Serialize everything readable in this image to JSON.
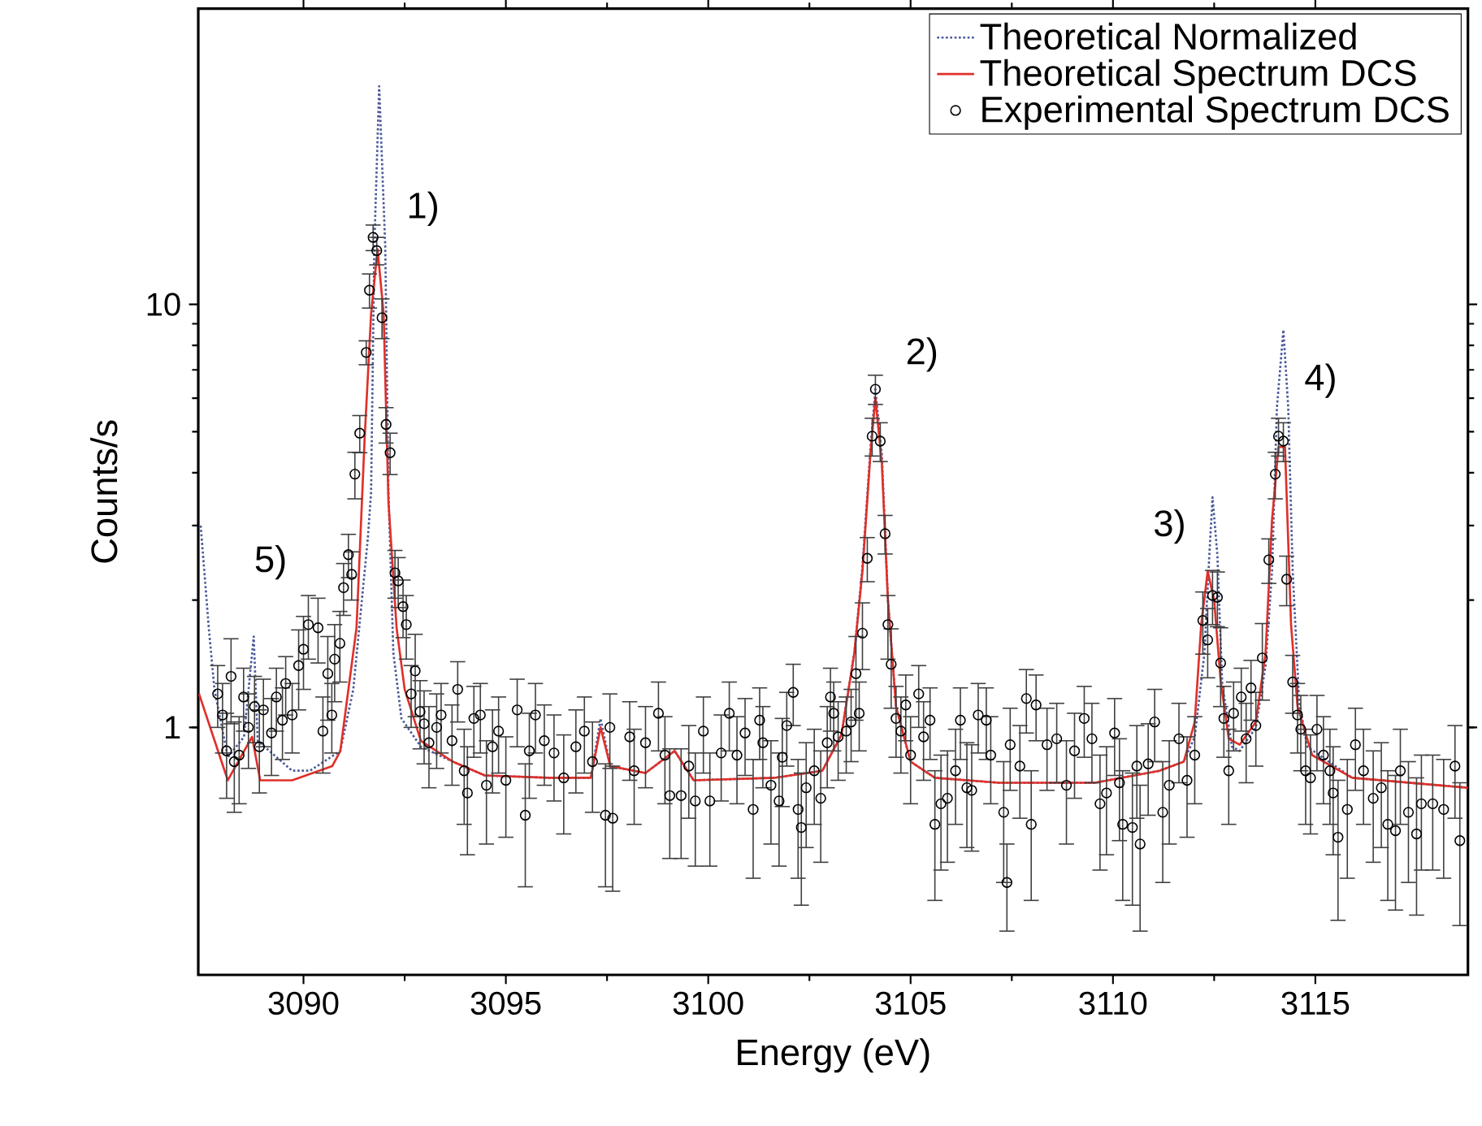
{
  "chart_data": {
    "type": "scatter",
    "xlabel": "Energy (eV)",
    "ylabel": "Counts/s",
    "log": "y",
    "xlim": [
      3087.4,
      3118.77
    ],
    "ylim": [
      0.26,
      50
    ],
    "xticks": [
      3090,
      3095,
      3100,
      3105,
      3110,
      3115
    ],
    "yticks": [
      1,
      10
    ],
    "grid": false,
    "legend": "top right",
    "annotations": [
      "1)",
      "2)",
      "3)",
      "4)",
      "5)"
    ],
    "series": [
      {
        "name": "Theoretical Normalized",
        "type": "line",
        "color": "#4a5a9a",
        "line_style": "dotted",
        "marker": "none",
        "x": [
          3087.46,
          3087.66,
          3087.8,
          3088.13,
          3088.53,
          3088.77,
          3088.87,
          3089.72,
          3090.16,
          3090.91,
          3091.23,
          3091.59,
          3091.67,
          3091.75,
          3091.87,
          3092.02,
          3092.1,
          3092.22,
          3092.42,
          3092.9,
          3093.69,
          3094.48,
          3096.07,
          3097.1,
          3097.34,
          3097.58,
          3098.45,
          3099.17,
          3099.64,
          3101.63,
          3102.82,
          3103.29,
          3103.61,
          3103.81,
          3104.01,
          3104.13,
          3104.29,
          3104.44,
          3104.64,
          3105.0,
          3105.6,
          3107.18,
          3109.56,
          3111.15,
          3111.75,
          3112.02,
          3112.26,
          3112.38,
          3112.46,
          3112.58,
          3112.7,
          3112.94,
          3113.13,
          3113.53,
          3113.77,
          3113.93,
          3114.05,
          3114.21,
          3114.33,
          3114.44,
          3114.6,
          3114.8,
          3115.91,
          3118.77
        ],
        "values": [
          3.0,
          1.72,
          1.23,
          0.85,
          0.95,
          1.64,
          0.93,
          0.79,
          0.79,
          0.88,
          1.23,
          2.8,
          3.6,
          13.7,
          32.8,
          13.7,
          3.6,
          1.5,
          1.05,
          0.9,
          0.83,
          0.77,
          0.76,
          0.76,
          1.05,
          0.81,
          0.78,
          0.88,
          0.75,
          0.76,
          0.79,
          0.96,
          1.5,
          2.4,
          4.6,
          6.3,
          4.4,
          2.0,
          1.12,
          0.83,
          0.76,
          0.74,
          0.74,
          0.79,
          0.83,
          0.95,
          1.5,
          2.55,
          3.5,
          2.55,
          1.26,
          0.9,
          0.88,
          1.0,
          1.4,
          2.34,
          5.7,
          8.7,
          5.7,
          2.34,
          1.15,
          0.9,
          0.76,
          0.72
        ]
      },
      {
        "name": "Theoretical Spectrum DCS",
        "type": "line",
        "color": "#e0302a",
        "line_style": "solid",
        "marker": "none",
        "x": [
          3087.42,
          3088.13,
          3088.73,
          3088.93,
          3089.72,
          3090.71,
          3090.91,
          3091.31,
          3091.51,
          3091.67,
          3091.83,
          3091.98,
          3092.1,
          3092.3,
          3092.5,
          3092.9,
          3093.69,
          3094.48,
          3096.07,
          3097.1,
          3097.34,
          3097.58,
          3098.45,
          3099.17,
          3099.64,
          3101.63,
          3102.82,
          3103.29,
          3103.61,
          3103.81,
          3104.01,
          3104.13,
          3104.29,
          3104.44,
          3104.64,
          3105.0,
          3105.6,
          3107.18,
          3109.56,
          3111.15,
          3111.75,
          3112.02,
          3112.18,
          3112.34,
          3112.5,
          3112.66,
          3112.86,
          3113.13,
          3113.53,
          3113.77,
          3113.93,
          3114.09,
          3114.25,
          3114.4,
          3114.56,
          3114.92,
          3115.91,
          3118.77
        ],
        "values": [
          1.2,
          0.75,
          0.95,
          0.75,
          0.75,
          0.81,
          0.88,
          1.72,
          4.8,
          9.5,
          13.5,
          9.5,
          3.4,
          1.72,
          1.23,
          0.93,
          0.83,
          0.77,
          0.76,
          0.76,
          1.0,
          0.81,
          0.78,
          0.88,
          0.75,
          0.76,
          0.79,
          0.96,
          1.5,
          2.34,
          4.46,
          6.0,
          4.2,
          2.0,
          1.12,
          0.83,
          0.76,
          0.74,
          0.74,
          0.79,
          0.83,
          1.03,
          1.75,
          2.34,
          2.0,
          1.29,
          0.94,
          0.91,
          1.03,
          1.5,
          3.1,
          4.6,
          4.6,
          1.75,
          1.12,
          0.86,
          0.76,
          0.72
        ]
      },
      {
        "name": "Experimental Spectrum DCS",
        "color": "#000000",
        "marker": "circle",
        "x": [
          3087.88,
          3088.0,
          3088.1,
          3088.21,
          3088.29,
          3088.41,
          3088.52,
          3088.64,
          3088.79,
          3088.91,
          3089.01,
          3089.21,
          3089.33,
          3089.48,
          3089.56,
          3089.72,
          3089.88,
          3090.0,
          3090.12,
          3090.36,
          3090.48,
          3090.6,
          3090.7,
          3090.77,
          3090.9,
          3090.99,
          3091.11,
          3091.19,
          3091.27,
          3091.39,
          3091.55,
          3091.63,
          3091.72,
          3091.81,
          3091.94,
          3092.04,
          3092.14,
          3092.26,
          3092.34,
          3092.46,
          3092.54,
          3092.66,
          3092.76,
          3092.88,
          3092.98,
          3093.1,
          3093.29,
          3093.4,
          3093.67,
          3093.81,
          3093.97,
          3094.05,
          3094.21,
          3094.37,
          3094.52,
          3094.67,
          3094.82,
          3095.0,
          3095.28,
          3095.48,
          3095.58,
          3095.73,
          3095.95,
          3096.19,
          3096.43,
          3096.73,
          3096.94,
          3097.14,
          3097.46,
          3097.57,
          3097.64,
          3098.06,
          3098.17,
          3098.45,
          3098.77,
          3098.93,
          3099.05,
          3099.33,
          3099.52,
          3099.68,
          3099.88,
          3100.04,
          3100.32,
          3100.52,
          3100.71,
          3100.91,
          3101.11,
          3101.27,
          3101.35,
          3101.55,
          3101.75,
          3101.83,
          3101.94,
          3102.1,
          3102.22,
          3102.3,
          3102.42,
          3102.62,
          3102.78,
          3102.94,
          3103.02,
          3103.1,
          3103.21,
          3103.41,
          3103.53,
          3103.65,
          3103.73,
          3103.81,
          3103.93,
          3104.05,
          3104.13,
          3104.25,
          3104.37,
          3104.44,
          3104.52,
          3104.64,
          3104.76,
          3104.88,
          3105.0,
          3105.2,
          3105.32,
          3105.48,
          3105.6,
          3105.75,
          3105.91,
          3106.11,
          3106.23,
          3106.39,
          3106.51,
          3106.67,
          3106.87,
          3106.98,
          3107.3,
          3107.38,
          3107.46,
          3107.7,
          3107.86,
          3107.98,
          3108.1,
          3108.37,
          3108.61,
          3108.85,
          3109.05,
          3109.29,
          3109.48,
          3109.68,
          3109.84,
          3110.04,
          3110.16,
          3110.24,
          3110.48,
          3110.59,
          3110.67,
          3110.87,
          3111.03,
          3111.23,
          3111.39,
          3111.63,
          3111.83,
          3112.02,
          3112.22,
          3112.34,
          3112.46,
          3112.58,
          3112.66,
          3112.74,
          3112.86,
          3112.98,
          3113.17,
          3113.29,
          3113.41,
          3113.53,
          3113.69,
          3113.85,
          3114.01,
          3114.09,
          3114.21,
          3114.29,
          3114.44,
          3114.56,
          3114.64,
          3114.76,
          3114.88,
          3115.04,
          3115.2,
          3115.36,
          3115.44,
          3115.56,
          3115.79,
          3115.99,
          3116.19,
          3116.43,
          3116.63,
          3116.79,
          3116.98,
          3117.1,
          3117.3,
          3117.5,
          3117.62,
          3117.9,
          3118.17,
          3118.45,
          3118.57
        ],
        "values": [
          1.2,
          1.07,
          0.88,
          1.32,
          0.83,
          0.86,
          1.18,
          1.0,
          1.12,
          0.9,
          1.1,
          0.97,
          1.18,
          1.04,
          1.27,
          1.07,
          1.4,
          1.53,
          1.75,
          1.72,
          0.98,
          1.34,
          1.07,
          1.45,
          1.58,
          2.14,
          2.56,
          2.3,
          3.97,
          4.96,
          7.7,
          10.8,
          14.4,
          13.4,
          9.3,
          5.2,
          4.46,
          2.32,
          2.22,
          1.93,
          1.75,
          1.2,
          1.36,
          1.09,
          1.02,
          0.92,
          1.0,
          1.07,
          0.93,
          1.23,
          0.79,
          0.7,
          1.05,
          1.07,
          0.73,
          0.9,
          0.98,
          0.75,
          1.1,
          0.62,
          0.88,
          1.07,
          0.93,
          0.87,
          0.76,
          0.9,
          0.98,
          0.83,
          0.62,
          1.0,
          0.61,
          0.95,
          0.79,
          0.92,
          1.08,
          0.86,
          0.69,
          0.69,
          0.81,
          0.67,
          0.98,
          0.67,
          0.87,
          1.08,
          0.86,
          0.97,
          0.64,
          1.04,
          0.92,
          0.73,
          0.67,
          0.85,
          1.01,
          1.21,
          0.64,
          0.58,
          0.72,
          0.79,
          0.68,
          0.92,
          1.18,
          1.08,
          0.95,
          0.98,
          1.03,
          1.34,
          1.08,
          1.67,
          2.51,
          4.88,
          6.3,
          4.75,
          2.87,
          1.75,
          1.41,
          1.05,
          0.98,
          1.13,
          0.86,
          1.2,
          0.95,
          1.04,
          0.59,
          0.66,
          0.68,
          0.79,
          1.04,
          0.72,
          0.71,
          1.07,
          1.04,
          0.86,
          0.63,
          0.43,
          0.91,
          0.81,
          1.17,
          0.59,
          1.13,
          0.91,
          0.94,
          0.73,
          0.88,
          1.05,
          0.94,
          0.66,
          0.7,
          0.97,
          0.74,
          0.59,
          0.58,
          0.81,
          0.53,
          0.82,
          1.03,
          0.63,
          0.73,
          0.94,
          0.75,
          0.86,
          1.79,
          1.61,
          2.05,
          2.03,
          1.42,
          1.05,
          0.79,
          1.08,
          1.18,
          0.94,
          1.24,
          1.01,
          1.46,
          2.49,
          3.97,
          4.88,
          4.75,
          2.24,
          1.28,
          1.07,
          0.99,
          0.79,
          0.76,
          0.99,
          0.86,
          0.79,
          0.7,
          0.55,
          0.64,
          0.91,
          0.79,
          0.68,
          0.72,
          0.59,
          0.57,
          0.79,
          0.63,
          0.56,
          0.66,
          0.66,
          0.64,
          0.81,
          0.54
        ],
        "errors": [
          0.2,
          0.2,
          0.2,
          0.3,
          0.2,
          0.2,
          0.2,
          0.2,
          0.2,
          0.2,
          0.2,
          0.2,
          0.2,
          0.2,
          0.2,
          0.2,
          0.3,
          0.3,
          0.3,
          0.3,
          0.2,
          0.3,
          0.2,
          0.3,
          0.3,
          0.3,
          0.3,
          0.3,
          0.5,
          0.5,
          0.5,
          1.0,
          1.0,
          1.0,
          1.0,
          0.5,
          0.5,
          0.3,
          0.3,
          0.3,
          0.3,
          0.2,
          0.3,
          0.2,
          0.2,
          0.2,
          0.2,
          0.2,
          0.2,
          0.2,
          0.2,
          0.2,
          0.2,
          0.2,
          0.2,
          0.2,
          0.2,
          0.2,
          0.2,
          0.2,
          0.2,
          0.2,
          0.2,
          0.2,
          0.2,
          0.2,
          0.2,
          0.2,
          0.2,
          0.2,
          0.2,
          0.2,
          0.2,
          0.2,
          0.2,
          0.2,
          0.2,
          0.2,
          0.2,
          0.2,
          0.2,
          0.2,
          0.2,
          0.2,
          0.2,
          0.2,
          0.2,
          0.2,
          0.2,
          0.2,
          0.2,
          0.2,
          0.2,
          0.2,
          0.2,
          0.2,
          0.2,
          0.2,
          0.2,
          0.2,
          0.2,
          0.2,
          0.2,
          0.2,
          0.2,
          0.3,
          0.2,
          0.3,
          0.3,
          0.5,
          0.5,
          0.5,
          0.3,
          0.3,
          0.3,
          0.2,
          0.2,
          0.2,
          0.2,
          0.2,
          0.2,
          0.2,
          0.2,
          0.2,
          0.2,
          0.2,
          0.2,
          0.2,
          0.2,
          0.2,
          0.2,
          0.2,
          0.2,
          0.1,
          0.2,
          0.2,
          0.2,
          0.2,
          0.2,
          0.2,
          0.2,
          0.2,
          0.2,
          0.2,
          0.2,
          0.2,
          0.2,
          0.2,
          0.2,
          0.2,
          0.2,
          0.2,
          0.2,
          0.2,
          0.2,
          0.2,
          0.2,
          0.2,
          0.2,
          0.2,
          0.3,
          0.3,
          0.3,
          0.3,
          0.3,
          0.2,
          0.2,
          0.2,
          0.2,
          0.2,
          0.2,
          0.2,
          0.3,
          0.3,
          0.5,
          0.5,
          0.5,
          0.3,
          0.2,
          0.2,
          0.2,
          0.2,
          0.2,
          0.2,
          0.2,
          0.2,
          0.2,
          0.2,
          0.2,
          0.2,
          0.2,
          0.2,
          0.2,
          0.2,
          0.2,
          0.2,
          0.2,
          0.2,
          0.2,
          0.2,
          0.2,
          0.2,
          0.2
        ]
      }
    ]
  }
}
